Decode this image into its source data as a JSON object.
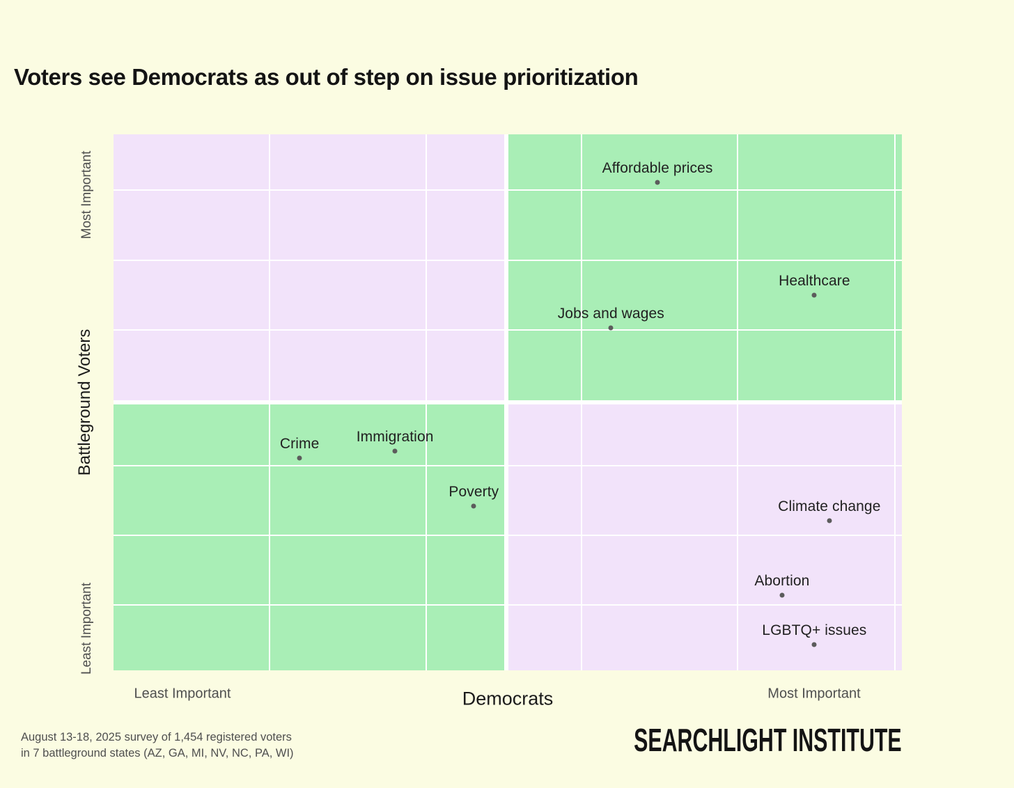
{
  "title": "Voters see Democrats as out of step on issue prioritization",
  "chart_data": {
    "type": "scatter",
    "title": "Voters see Democrats as out of step on issue prioritization",
    "x_axis": {
      "title": "Democrats",
      "left_label": "Least Important",
      "right_label": "Most Important",
      "range": [
        0,
        100
      ],
      "scale_note": "relative position, no numeric ticks shown"
    },
    "y_axis": {
      "title": "Battleground Voters",
      "top_label": "Most Important",
      "bottom_label": "Least Important",
      "range": [
        0,
        100
      ],
      "scale_note": "relative position, no numeric ticks shown"
    },
    "grid": "on",
    "quadrant_layout": {
      "top_left": "lavender",
      "top_right": "green",
      "bottom_left": "green",
      "bottom_right": "lavender"
    },
    "points": [
      {
        "label": "Affordable prices",
        "x": 69.0,
        "y": 91.0
      },
      {
        "label": "Healthcare",
        "x": 88.9,
        "y": 70.0
      },
      {
        "label": "Jobs and wages",
        "x": 63.1,
        "y": 63.9
      },
      {
        "label": "Crime",
        "x": 23.6,
        "y": 39.6
      },
      {
        "label": "Immigration",
        "x": 35.7,
        "y": 40.9
      },
      {
        "label": "Poverty",
        "x": 45.7,
        "y": 30.6
      },
      {
        "label": "Climate change",
        "x": 90.8,
        "y": 27.9
      },
      {
        "label": "Abortion",
        "x": 84.8,
        "y": 14.0
      },
      {
        "label": "LGBTQ+ issues",
        "x": 88.9,
        "y": 4.8
      }
    ]
  },
  "footer": {
    "line1": "August 13-18, 2025 survey of 1,454 registered voters",
    "line2": "in 7 battleground states (AZ, GA, MI, NV, NC, PA, WI)",
    "brand": "SEARCHLIGHT INSTITUTE"
  },
  "colors": {
    "background": "#FBFCE2",
    "quadrant_green": "#A9EEB6",
    "quadrant_lavender": "#F2E3FA",
    "gridline": "#FFFFFF",
    "dot": "#5C5C5C",
    "point_label_text": "#212121",
    "title_text": "#141414",
    "axis_text_dark": "#1B1B1B",
    "axis_text_muted": "#4F4F4F"
  }
}
